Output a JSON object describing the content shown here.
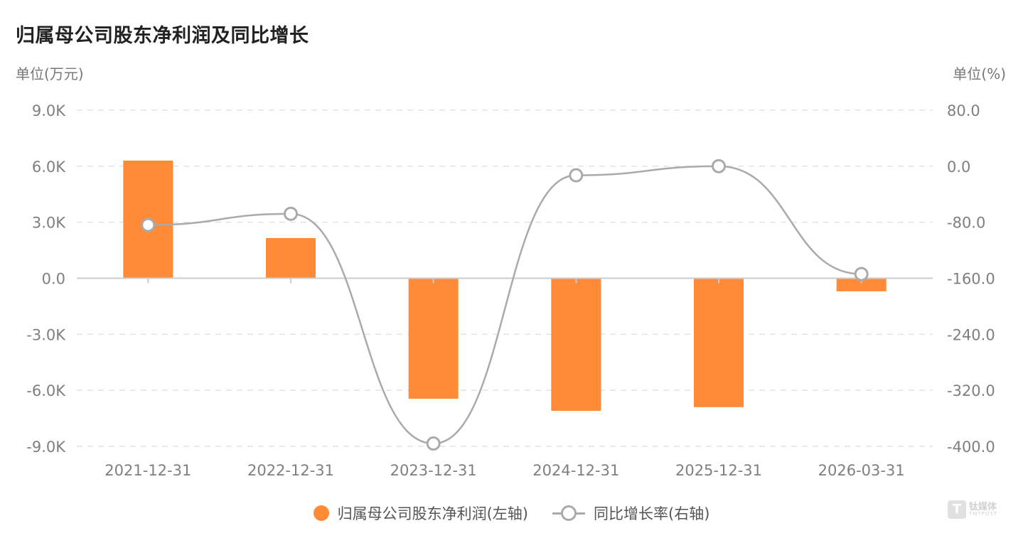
{
  "title": "归属母公司股东净利润及同比增长",
  "colors": {
    "bar": "#ff8a37",
    "line": "#aaaaaa",
    "grid": "#e3e3e3",
    "axis": "#cccccc"
  },
  "chart_data": {
    "type": "bar+line",
    "title": "归属母公司股东净利润及同比增长",
    "ylabel_left": "单位(万元)",
    "ylabel_right": "单位(%)",
    "categories": [
      "2021-12-31",
      "2022-12-31",
      "2023-12-31",
      "2024-12-31",
      "2025-12-31",
      "2026-03-31"
    ],
    "y_left": {
      "ticks": [
        9000,
        6000,
        3000,
        0,
        -3000,
        -6000,
        -9000
      ],
      "tick_labels": [
        "9.0K",
        "6.0K",
        "3.0K",
        "0.0",
        "-3.0K",
        "-6.0K",
        "-9.0K"
      ],
      "range": [
        -9000,
        9000
      ]
    },
    "y_right": {
      "ticks": [
        80,
        0,
        -80,
        -160,
        -240,
        -320,
        -400
      ],
      "tick_labels": [
        "80.0",
        "0.0",
        "-80.0",
        "-160.0",
        "-240.0",
        "-320.0",
        "-400.0"
      ],
      "range": [
        -400,
        80
      ]
    },
    "series": [
      {
        "name": "归属母公司股东净利润(左轴)",
        "type": "bar",
        "axis": "left",
        "values": [
          6300,
          2150,
          -6450,
          -7100,
          -6900,
          -700
        ]
      },
      {
        "name": "同比增长率(右轴)",
        "type": "line",
        "axis": "right",
        "values": [
          -84,
          -68,
          -396,
          -13,
          0,
          -154
        ]
      }
    ],
    "grid": true,
    "legend_position": "bottom-center"
  },
  "watermark": {
    "icon": "T",
    "main": "钛媒体",
    "sub": "TMTPOST"
  }
}
